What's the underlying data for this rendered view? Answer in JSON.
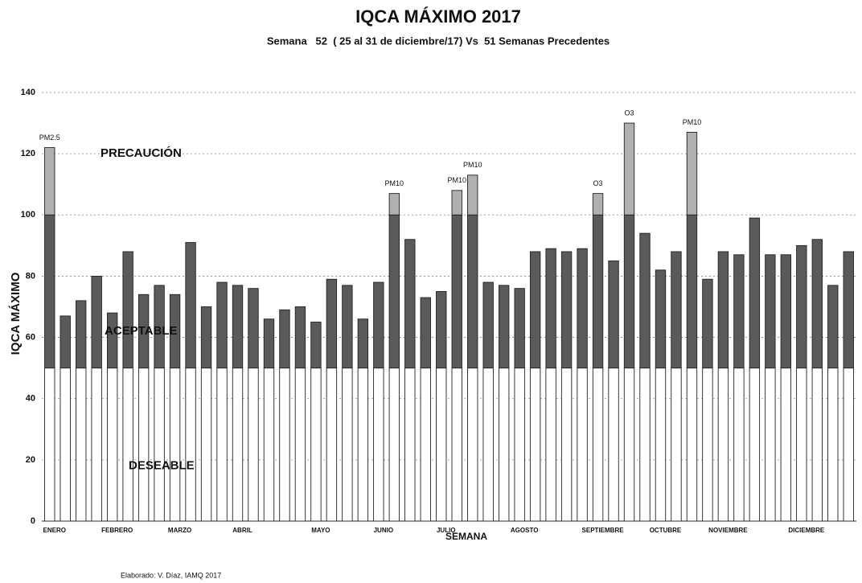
{
  "chart_data": {
    "type": "bar",
    "stacked": true,
    "title": "IQCA MÁXIMO 2017",
    "subtitle": "Semana   52  ( 25 al 31 de diciembre/17) Vs  51 Semanas Precedentes",
    "ylabel": "IQCA MÁXIMO",
    "xlabel": "SEMANA",
    "footer": "Elaborado: V. Díaz, IAMQ 2017",
    "categories": [
      "ENERO",
      null,
      null,
      null,
      "FEBRERO",
      null,
      null,
      null,
      "MARZO",
      null,
      null,
      null,
      "ABRIL",
      null,
      null,
      null,
      null,
      "MAYO",
      null,
      null,
      null,
      "JUNIO",
      null,
      null,
      null,
      "JULIO",
      null,
      null,
      null,
      null,
      "AGOSTO",
      null,
      null,
      null,
      null,
      "SEPTIEMBRE",
      null,
      null,
      null,
      "OCTUBRE",
      null,
      null,
      null,
      "NOVIEMBRE",
      null,
      null,
      null,
      null,
      "DICIEMBRE",
      null,
      null,
      null
    ],
    "series": [
      {
        "name": "DESEABLE",
        "color": "#ffffff",
        "values": [
          50,
          50,
          50,
          50,
          50,
          50,
          50,
          50,
          50,
          50,
          50,
          50,
          50,
          50,
          50,
          50,
          50,
          50,
          50,
          50,
          50,
          50,
          50,
          50,
          50,
          50,
          50,
          50,
          50,
          50,
          50,
          50,
          50,
          50,
          50,
          50,
          50,
          50,
          50,
          50,
          50,
          50,
          50,
          50,
          50,
          50,
          50,
          50,
          50,
          50,
          50,
          50
        ]
      },
      {
        "name": "ACEPTABLE",
        "color": "#5a5a5a",
        "values": [
          50,
          17,
          22,
          30,
          18,
          38,
          24,
          27,
          24,
          41,
          20,
          28,
          27,
          26,
          16,
          19,
          20,
          15,
          29,
          27,
          16,
          28,
          50,
          42,
          23,
          25,
          50,
          50,
          28,
          27,
          26,
          38,
          39,
          38,
          39,
          50,
          35,
          50,
          44,
          32,
          38,
          50,
          29,
          38,
          37,
          49,
          37,
          37,
          40,
          42,
          27,
          38
        ]
      },
      {
        "name": "PRECAUCIÓN",
        "color": "#b0b0b0",
        "values": [
          22,
          null,
          null,
          null,
          null,
          null,
          null,
          null,
          null,
          null,
          null,
          null,
          null,
          null,
          null,
          null,
          null,
          null,
          null,
          null,
          null,
          null,
          7,
          null,
          null,
          null,
          8,
          13,
          null,
          null,
          null,
          null,
          null,
          null,
          null,
          7,
          null,
          30,
          null,
          null,
          null,
          27,
          null,
          null,
          null,
          null,
          null,
          null,
          null,
          null,
          null,
          null
        ]
      }
    ],
    "bar_labels": [
      "PM2.5",
      null,
      null,
      null,
      null,
      null,
      null,
      null,
      null,
      null,
      null,
      null,
      null,
      null,
      null,
      null,
      null,
      null,
      null,
      null,
      null,
      null,
      "PM10",
      null,
      null,
      null,
      "PM10",
      "PM10",
      null,
      null,
      null,
      null,
      null,
      null,
      null,
      "O3",
      null,
      "O3",
      null,
      null,
      null,
      "PM10",
      null,
      null,
      null,
      null,
      null,
      null,
      null,
      null,
      null,
      null
    ],
    "ylim": [
      0,
      140
    ],
    "yticks": [
      0,
      20,
      40,
      60,
      80,
      100,
      120,
      140
    ],
    "grid": true
  }
}
